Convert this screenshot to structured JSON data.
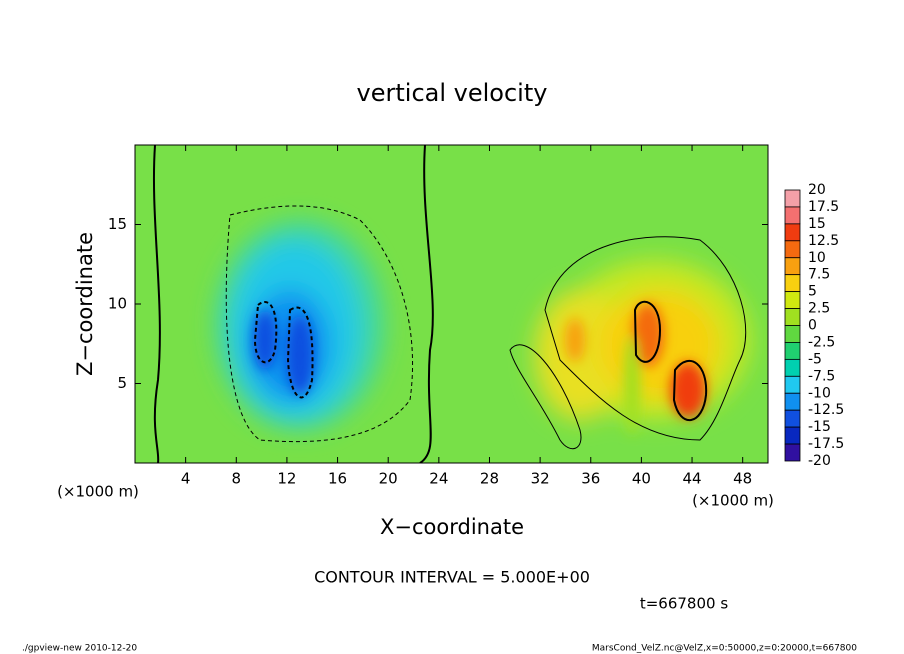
{
  "chart_data": {
    "type": "contour",
    "title": "vertical velocity",
    "x_label": "X−coordinate",
    "y_label": "Z−coordinate",
    "x_unit": "(×1000 m)",
    "y_unit": "(×1000 m)",
    "xlim": [
      0,
      50
    ],
    "xticks": [
      4,
      8,
      12,
      16,
      20,
      24,
      28,
      32,
      36,
      40,
      44,
      48
    ],
    "ylim": [
      0,
      20
    ],
    "yticks": [
      5,
      10,
      15
    ],
    "colorbar": {
      "levels": [
        20,
        17.5,
        15,
        12.5,
        10,
        7.5,
        5,
        2.5,
        0,
        -2.5,
        -5,
        -7.5,
        -10,
        -12.5,
        -15,
        -17.5,
        -20
      ],
      "colors": [
        "#f4a0a8",
        "#f47070",
        "#f03c10",
        "#f46a10",
        "#f8a010",
        "#f8d010",
        "#d0e810",
        "#a0e020",
        "#60d840",
        "#20d070",
        "#00d0b0",
        "#20c8f0",
        "#1090f0",
        "#1050e0",
        "#0828c0",
        "#3010a0"
      ]
    },
    "contour_interval": "CONTOUR INTERVAL = 5.000E+00",
    "time_label": "t=667800 s",
    "footer_left": "./gpview-new  2010-12-20",
    "footer_right": "MarsCond_VelZ.nc@VelZ,x=0:50000,z=0:20000,t=667800"
  }
}
